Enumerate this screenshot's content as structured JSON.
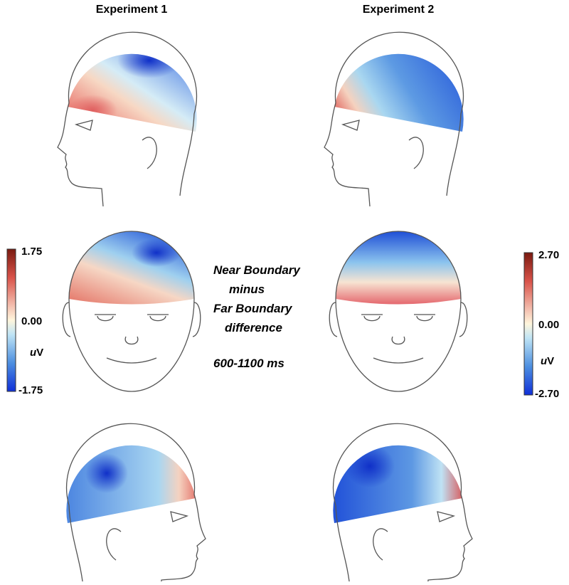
{
  "headers": [
    "Experiment 1",
    "Experiment 2"
  ],
  "caption": {
    "lines": [
      "Near Boundary",
      "minus",
      "Far Boundary",
      "difference"
    ],
    "window": "600-1100 ms"
  },
  "scales": [
    {
      "max": "1.75",
      "mid": "0.00",
      "min": "-1.75",
      "unit_prefix": "u",
      "unit": "V"
    },
    {
      "max": "2.70",
      "mid": "0.00",
      "min": "-2.70",
      "unit_prefix": "u",
      "unit": "V"
    }
  ]
}
